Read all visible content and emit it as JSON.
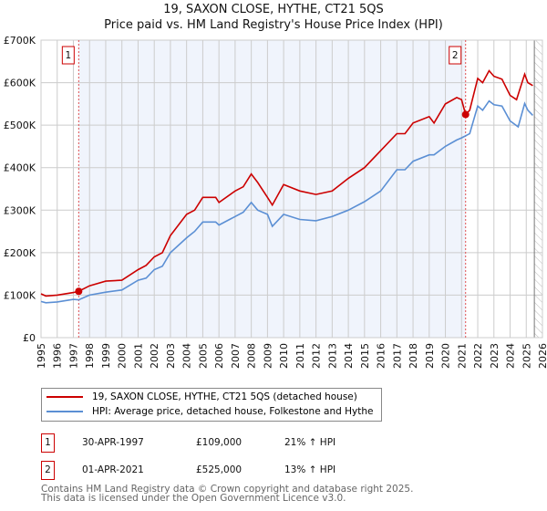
{
  "title": "19, SAXON CLOSE, HYTHE, CT21 5QS",
  "subtitle": "Price paid vs. HM Land Registry's House Price Index (HPI)",
  "chart_data": {
    "type": "line",
    "ylim": [
      0,
      700000
    ],
    "xlim": [
      1995,
      2026
    ],
    "yticks": [
      {
        "v": 0,
        "label": "£0"
      },
      {
        "v": 100000,
        "label": "£100K"
      },
      {
        "v": 200000,
        "label": "£200K"
      },
      {
        "v": 300000,
        "label": "£300K"
      },
      {
        "v": 400000,
        "label": "£400K"
      },
      {
        "v": 500000,
        "label": "£500K"
      },
      {
        "v": 600000,
        "label": "£600K"
      },
      {
        "v": 700000,
        "label": "£700K"
      }
    ],
    "xticks": [
      "1995",
      "1996",
      "1997",
      "1998",
      "1999",
      "2000",
      "2001",
      "2002",
      "2003",
      "2004",
      "2005",
      "2006",
      "2007",
      "2008",
      "2009",
      "2010",
      "2011",
      "2012",
      "2013",
      "2014",
      "2015",
      "2016",
      "2017",
      "2018",
      "2019",
      "2020",
      "2021",
      "2022",
      "2023",
      "2024",
      "2025",
      "2026"
    ],
    "grid": true,
    "shaded_period": [
      1997.33,
      2021.25
    ],
    "forecast_hatch_from": 2025.5,
    "series": [
      {
        "name": "19, SAXON CLOSE, HYTHE, CT21 5QS (detached house)",
        "color": "#cc0000",
        "x": [
          1995,
          1995.3,
          1996,
          1997,
          1997.33,
          1998,
          1999,
          2000,
          2001,
          2001.5,
          2002,
          2002.5,
          2003,
          2004,
          2004.5,
          2005,
          2005.8,
          2006,
          2007,
          2007.5,
          2008,
          2008.4,
          2009,
          2009.3,
          2010,
          2011,
          2012,
          2013,
          2014,
          2015,
          2016,
          2017,
          2017.5,
          2018,
          2019,
          2019.3,
          2020,
          2020.7,
          2021,
          2021.25,
          2021.5,
          2022,
          2022.3,
          2022.7,
          2023,
          2023.5,
          2024,
          2024.4,
          2024.9,
          2025.1,
          2025.4
        ],
        "y": [
          103000,
          98000,
          100000,
          106000,
          109000,
          122000,
          133000,
          135000,
          160000,
          170000,
          190000,
          200000,
          240000,
          290000,
          300000,
          330000,
          330000,
          318000,
          345000,
          355000,
          385000,
          365000,
          330000,
          312000,
          360000,
          345000,
          337000,
          345000,
          375000,
          400000,
          440000,
          480000,
          480000,
          505000,
          520000,
          505000,
          550000,
          565000,
          560000,
          525000,
          535000,
          610000,
          600000,
          628000,
          615000,
          608000,
          570000,
          560000,
          620000,
          600000,
          593000
        ]
      },
      {
        "name": "HPI: Average price, detached house, Folkestone and Hythe",
        "color": "#5b8fd4",
        "x": [
          1995,
          1995.3,
          1996,
          1997,
          1997.33,
          1998,
          1999,
          2000,
          2001,
          2001.5,
          2002,
          2002.5,
          2003,
          2004,
          2004.5,
          2005,
          2005.8,
          2006,
          2007,
          2007.5,
          2008,
          2008.4,
          2009,
          2009.3,
          2010,
          2011,
          2012,
          2013,
          2014,
          2015,
          2016,
          2017,
          2017.5,
          2018,
          2019,
          2019.3,
          2020,
          2020.7,
          2021,
          2021.5,
          2022,
          2022.3,
          2022.7,
          2023,
          2023.5,
          2024,
          2024.5,
          2024.9,
          2025.1,
          2025.4
        ],
        "y": [
          85000,
          82000,
          84000,
          90000,
          89000,
          100000,
          107000,
          112000,
          135000,
          140000,
          160000,
          168000,
          200000,
          235000,
          250000,
          272000,
          272000,
          265000,
          285000,
          295000,
          318000,
          300000,
          290000,
          262000,
          290000,
          278000,
          275000,
          285000,
          300000,
          320000,
          345000,
          395000,
          395000,
          415000,
          430000,
          430000,
          450000,
          465000,
          470000,
          480000,
          545000,
          535000,
          557000,
          548000,
          545000,
          510000,
          496000,
          551000,
          535000,
          523000
        ]
      }
    ],
    "sales": [
      {
        "label": "1",
        "x": 1997.33,
        "y": 109000
      },
      {
        "label": "2",
        "x": 2021.25,
        "y": 525000
      }
    ]
  },
  "legend": {
    "items": [
      "19, SAXON CLOSE, HYTHE, CT21 5QS (detached house)",
      "HPI: Average price, detached house, Folkestone and Hythe"
    ]
  },
  "transactions": [
    {
      "num": "1",
      "date": "30-APR-1997",
      "price": "£109,000",
      "hpi": "21% ↑ HPI"
    },
    {
      "num": "2",
      "date": "01-APR-2021",
      "price": "£525,000",
      "hpi": "13% ↑ HPI"
    }
  ],
  "footer": {
    "line1": "Contains HM Land Registry data © Crown copyright and database right 2025.",
    "line2": "This data is licensed under the Open Government Licence v3.0."
  }
}
